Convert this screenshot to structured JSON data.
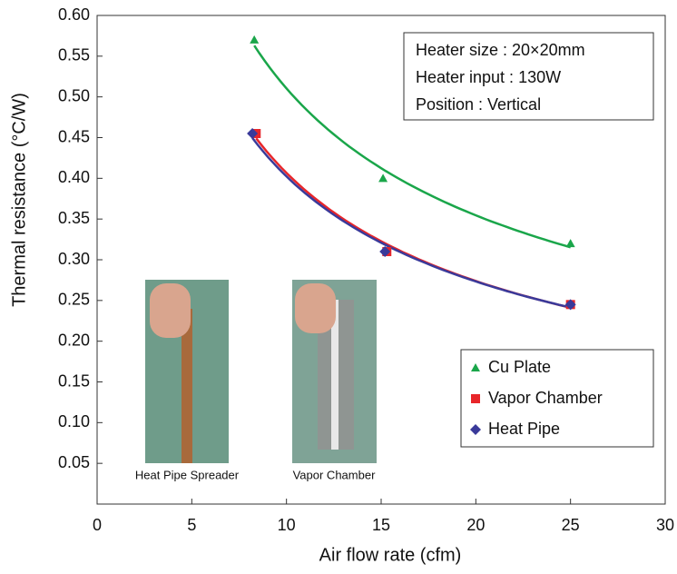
{
  "chart_data": {
    "type": "scatter",
    "xlabel": "Air flow rate (cfm)",
    "ylabel": "Thermal resistance (°C/W)",
    "annotations": [
      "Heater size : 20×20mm",
      "Heater input : 130W",
      "Position : Vertical"
    ],
    "photo_captions": [
      "Heat Pipe Spreader",
      "Vapor Chamber"
    ],
    "xlim": [
      0,
      30
    ],
    "xticks": [
      0,
      5,
      10,
      15,
      20,
      25,
      30
    ],
    "ylim": [
      0,
      0.6
    ],
    "yticks": [
      {
        "value": 0.05,
        "label": "0.05"
      },
      {
        "value": 0.1,
        "label": "0.10"
      },
      {
        "value": 0.15,
        "label": "0.15"
      },
      {
        "value": 0.2,
        "label": "0.20"
      },
      {
        "value": 0.25,
        "label": "0.25"
      },
      {
        "value": 0.3,
        "label": "0.30"
      },
      {
        "value": 0.35,
        "label": "0.35"
      },
      {
        "value": 0.4,
        "label": "0.40"
      },
      {
        "value": 0.45,
        "label": "0.45"
      },
      {
        "value": 0.5,
        "label": "0.50"
      },
      {
        "value": 0.55,
        "label": "0.55"
      },
      {
        "value": 0.6,
        "label": "0.60"
      }
    ],
    "trendline": "power",
    "legend": "lower right",
    "series": [
      {
        "name": "Cu Plate",
        "color": "#1aa64a",
        "marker": "triangle",
        "x": [
          8.3,
          15.1,
          25
        ],
        "values": [
          0.57,
          0.4,
          0.32
        ]
      },
      {
        "name": "Vapor Chamber",
        "color": "#e8262a",
        "marker": "square",
        "x": [
          8.4,
          15.3,
          25
        ],
        "values": [
          0.455,
          0.31,
          0.245
        ]
      },
      {
        "name": "Heat Pipe",
        "color": "#3a3a9a",
        "marker": "diamond",
        "x": [
          8.2,
          15.2,
          25
        ],
        "values": [
          0.455,
          0.31,
          0.245
        ]
      }
    ]
  }
}
